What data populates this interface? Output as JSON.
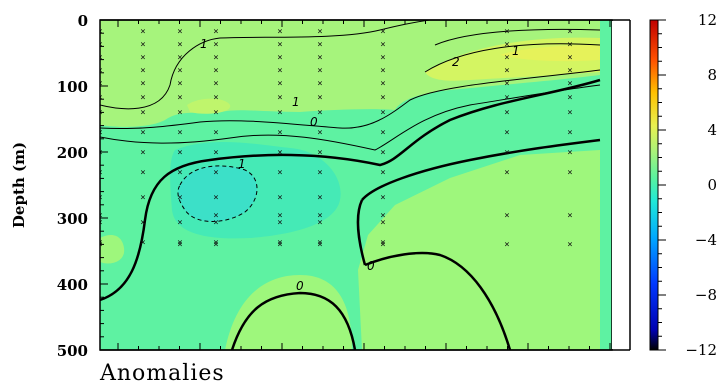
{
  "chart_data": {
    "type": "contour",
    "ylabel": "Depth (m)",
    "footer": "Anomalies",
    "ylim": [
      500,
      0
    ],
    "yticks": [
      "0",
      "100",
      "200",
      "300",
      "400",
      "500"
    ],
    "colorbar": {
      "range": [
        -12,
        12
      ],
      "ticks": [
        "12",
        "8",
        "4",
        "0",
        "−4",
        "−8",
        "−12"
      ]
    },
    "contour_labels": [
      "1",
      "2",
      "1",
      "1",
      "0",
      "1",
      "0",
      "0"
    ],
    "colors": {
      "fill_base": "#5ef2a2",
      "fill_positive_1": "#9ef77c",
      "fill_positive_2": "#d2f560",
      "fill_negative": "#3fe6c2"
    }
  }
}
